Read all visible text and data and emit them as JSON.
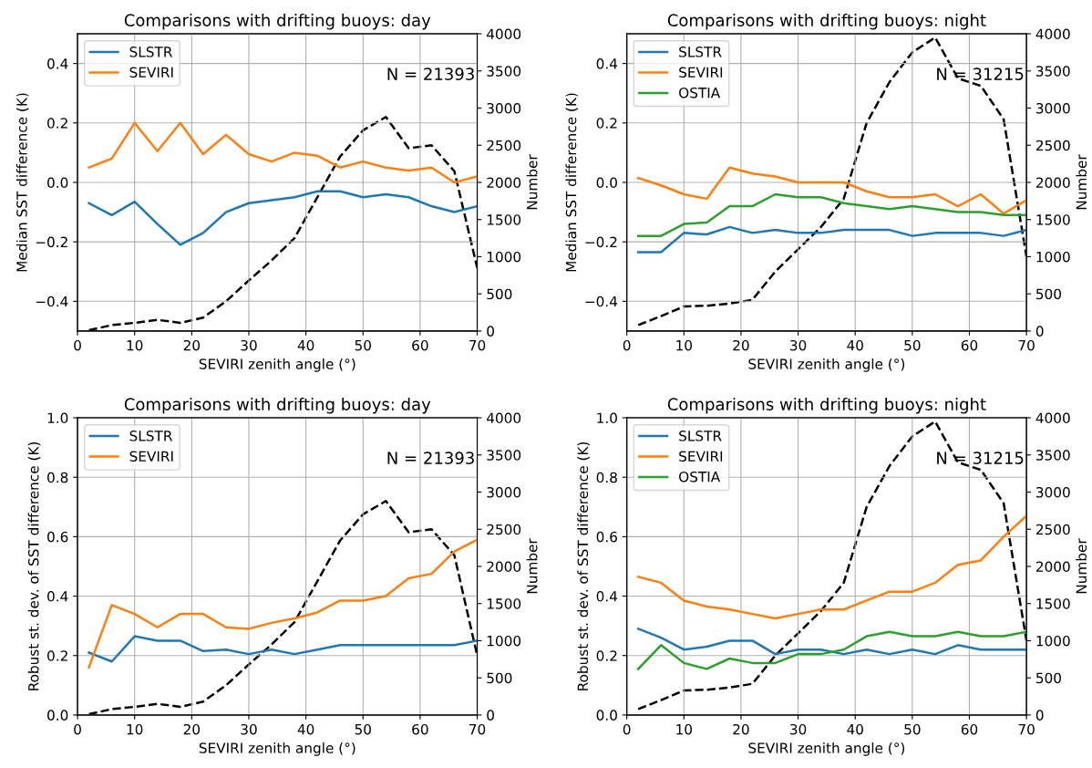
{
  "chart_data": [
    {
      "type": "line",
      "title": "Comparisons with drifting buoys: day",
      "xlabel": "SEVIRI zenith angle (°)",
      "ylabel": "Median SST difference (K)",
      "y2label": "Number",
      "x": [
        2,
        6,
        10,
        14,
        18,
        22,
        26,
        30,
        34,
        38,
        42,
        46,
        50,
        54,
        58,
        62,
        66,
        70
      ],
      "xlim": [
        0,
        70
      ],
      "xticks": [
        0,
        10,
        20,
        30,
        40,
        50,
        60,
        70
      ],
      "ylim": [
        -0.5,
        0.5
      ],
      "yticks": [
        {
          "value": -0.4,
          "label": "−0.4"
        },
        {
          "value": -0.2,
          "label": "−0.2"
        },
        {
          "value": 0,
          "label": "0.0"
        },
        0.2,
        0.4
      ],
      "y2lim": [
        0,
        4000
      ],
      "y2ticks": [
        0,
        500,
        1000,
        1500,
        2000,
        2500,
        3000,
        3500,
        4000
      ],
      "grid": true,
      "legend": "top left",
      "annotations": [
        "N = 21393"
      ],
      "series": [
        {
          "name": "SLSTR",
          "color": "#1f77b4",
          "values": [
            -0.07,
            -0.11,
            -0.065,
            -0.14,
            -0.21,
            -0.17,
            -0.1,
            -0.07,
            -0.06,
            -0.05,
            -0.03,
            -0.03,
            -0.05,
            -0.04,
            -0.05,
            -0.08,
            -0.1,
            -0.08
          ]
        },
        {
          "name": "SEVIRI",
          "color": "#ff7f0e",
          "values": [
            0.05,
            0.08,
            0.2,
            0.105,
            0.2,
            0.095,
            0.16,
            0.095,
            0.07,
            0.1,
            0.09,
            0.05,
            0.07,
            0.05,
            0.04,
            0.05,
            0.0,
            0.02
          ]
        },
        {
          "color": "#000000",
          "axis": "y2",
          "line_style": "dashed",
          "values": [
            10,
            80,
            110,
            150,
            110,
            180,
            400,
            680,
            950,
            1250,
            1800,
            2350,
            2700,
            2880,
            2460,
            2500,
            2150,
            850
          ]
        }
      ]
    },
    {
      "type": "line",
      "title": "Comparisons with drifting buoys: night",
      "xlabel": "SEVIRI zenith angle (°)",
      "ylabel": "Median SST difference (K)",
      "y2label": "Number",
      "x": [
        2,
        6,
        10,
        14,
        18,
        22,
        26,
        30,
        34,
        38,
        42,
        46,
        50,
        54,
        58,
        62,
        66,
        70
      ],
      "xlim": [
        0,
        70
      ],
      "xticks": [
        0,
        10,
        20,
        30,
        40,
        50,
        60,
        70
      ],
      "ylim": [
        -0.5,
        0.5
      ],
      "yticks": [
        {
          "value": -0.4,
          "label": "−0.4"
        },
        {
          "value": -0.2,
          "label": "−0.2"
        },
        {
          "value": 0,
          "label": "0.0"
        },
        0.2,
        0.4
      ],
      "y2lim": [
        0,
        4000
      ],
      "y2ticks": [
        0,
        500,
        1000,
        1500,
        2000,
        2500,
        3000,
        3500,
        4000
      ],
      "grid": true,
      "legend": "top left",
      "annotations": [
        "N = 31215"
      ],
      "series": [
        {
          "name": "SLSTR",
          "color": "#1f77b4",
          "values": [
            -0.235,
            -0.235,
            -0.17,
            -0.175,
            -0.15,
            -0.17,
            -0.16,
            -0.17,
            -0.17,
            -0.16,
            -0.16,
            -0.16,
            -0.18,
            -0.17,
            -0.17,
            -0.17,
            -0.18,
            -0.16
          ]
        },
        {
          "name": "SEVIRI",
          "color": "#ff7f0e",
          "values": [
            0.015,
            -0.01,
            -0.04,
            -0.055,
            0.05,
            0.03,
            0.02,
            0.0,
            0.0,
            0.0,
            -0.03,
            -0.05,
            -0.05,
            -0.04,
            -0.08,
            -0.04,
            -0.105,
            -0.06
          ]
        },
        {
          "name": "OSTIA",
          "color": "#2ca02c",
          "values": [
            -0.18,
            -0.18,
            -0.14,
            -0.135,
            -0.08,
            -0.08,
            -0.04,
            -0.05,
            -0.05,
            -0.07,
            -0.08,
            -0.09,
            -0.08,
            -0.09,
            -0.1,
            -0.1,
            -0.11,
            -0.11
          ]
        },
        {
          "color": "#000000",
          "axis": "y2",
          "line_style": "dashed",
          "values": [
            80,
            200,
            330,
            340,
            370,
            420,
            800,
            1100,
            1400,
            1780,
            2800,
            3350,
            3750,
            3950,
            3400,
            3300,
            2850,
            1000
          ]
        }
      ]
    },
    {
      "type": "line",
      "title": "Comparisons with drifting buoys: day",
      "xlabel": "SEVIRI zenith angle (°)",
      "ylabel": "Robust st. dev. of SST difference (K)",
      "y2label": "Number",
      "x": [
        2,
        6,
        10,
        14,
        18,
        22,
        26,
        30,
        34,
        38,
        42,
        46,
        50,
        54,
        58,
        62,
        66,
        70
      ],
      "xlim": [
        0,
        70
      ],
      "xticks": [
        0,
        10,
        20,
        30,
        40,
        50,
        60,
        70
      ],
      "ylim": [
        0,
        1
      ],
      "yticks": [
        {
          "value": 0,
          "label": "0.0"
        },
        0.2,
        0.4,
        0.6,
        0.8,
        {
          "value": 1,
          "label": "1.0"
        }
      ],
      "y2lim": [
        0,
        4000
      ],
      "y2ticks": [
        0,
        500,
        1000,
        1500,
        2000,
        2500,
        3000,
        3500,
        4000
      ],
      "grid": true,
      "legend": "top left",
      "annotations": [
        "N = 21393"
      ],
      "series": [
        {
          "name": "SLSTR",
          "color": "#1f77b4",
          "values": [
            0.21,
            0.18,
            0.265,
            0.25,
            0.25,
            0.215,
            0.22,
            0.205,
            0.22,
            0.205,
            0.22,
            0.235,
            0.235,
            0.235,
            0.235,
            0.235,
            0.235,
            0.25
          ]
        },
        {
          "name": "SEVIRI",
          "color": "#ff7f0e",
          "values": [
            0.16,
            0.37,
            0.34,
            0.295,
            0.34,
            0.34,
            0.295,
            0.29,
            0.31,
            0.325,
            0.345,
            0.385,
            0.385,
            0.4,
            0.46,
            0.475,
            0.55,
            0.59
          ]
        },
        {
          "color": "#000000",
          "axis": "y2",
          "line_style": "dashed",
          "values": [
            10,
            80,
            110,
            150,
            110,
            180,
            400,
            680,
            950,
            1250,
            1800,
            2350,
            2700,
            2880,
            2460,
            2500,
            2150,
            800
          ]
        }
      ]
    },
    {
      "type": "line",
      "title": "Comparisons with drifting buoys: night",
      "xlabel": "SEVIRI zenith angle (°)",
      "ylabel": "Robust st. dev. of SST difference (K)",
      "y2label": "Number",
      "x": [
        2,
        6,
        10,
        14,
        18,
        22,
        26,
        30,
        34,
        38,
        42,
        46,
        50,
        54,
        58,
        62,
        66,
        70
      ],
      "xlim": [
        0,
        70
      ],
      "xticks": [
        0,
        10,
        20,
        30,
        40,
        50,
        60,
        70
      ],
      "ylim": [
        0,
        1
      ],
      "yticks": [
        {
          "value": 0,
          "label": "0.0"
        },
        0.2,
        0.4,
        0.6,
        0.8,
        {
          "value": 1,
          "label": "1.0"
        }
      ],
      "y2lim": [
        0,
        4000
      ],
      "y2ticks": [
        0,
        500,
        1000,
        1500,
        2000,
        2500,
        3000,
        3500,
        4000
      ],
      "grid": true,
      "legend": "top left",
      "annotations": [
        "N = 31215"
      ],
      "series": [
        {
          "name": "SLSTR",
          "color": "#1f77b4",
          "values": [
            0.29,
            0.26,
            0.22,
            0.23,
            0.25,
            0.25,
            0.205,
            0.22,
            0.22,
            0.205,
            0.22,
            0.205,
            0.22,
            0.205,
            0.235,
            0.22,
            0.22,
            0.22
          ]
        },
        {
          "name": "SEVIRI",
          "color": "#ff7f0e",
          "values": [
            0.465,
            0.445,
            0.385,
            0.365,
            0.355,
            0.34,
            0.325,
            0.34,
            0.355,
            0.355,
            0.385,
            0.415,
            0.415,
            0.445,
            0.505,
            0.52,
            0.6,
            0.67
          ]
        },
        {
          "name": "OSTIA",
          "color": "#2ca02c",
          "values": [
            0.155,
            0.235,
            0.175,
            0.155,
            0.19,
            0.175,
            0.175,
            0.205,
            0.205,
            0.22,
            0.265,
            0.28,
            0.265,
            0.265,
            0.28,
            0.265,
            0.265,
            0.28
          ]
        },
        {
          "color": "#000000",
          "axis": "y2",
          "line_style": "dashed",
          "values": [
            80,
            200,
            330,
            340,
            370,
            420,
            800,
            1100,
            1400,
            1780,
            2800,
            3350,
            3750,
            3950,
            3400,
            3300,
            2850,
            1000
          ]
        }
      ]
    }
  ]
}
